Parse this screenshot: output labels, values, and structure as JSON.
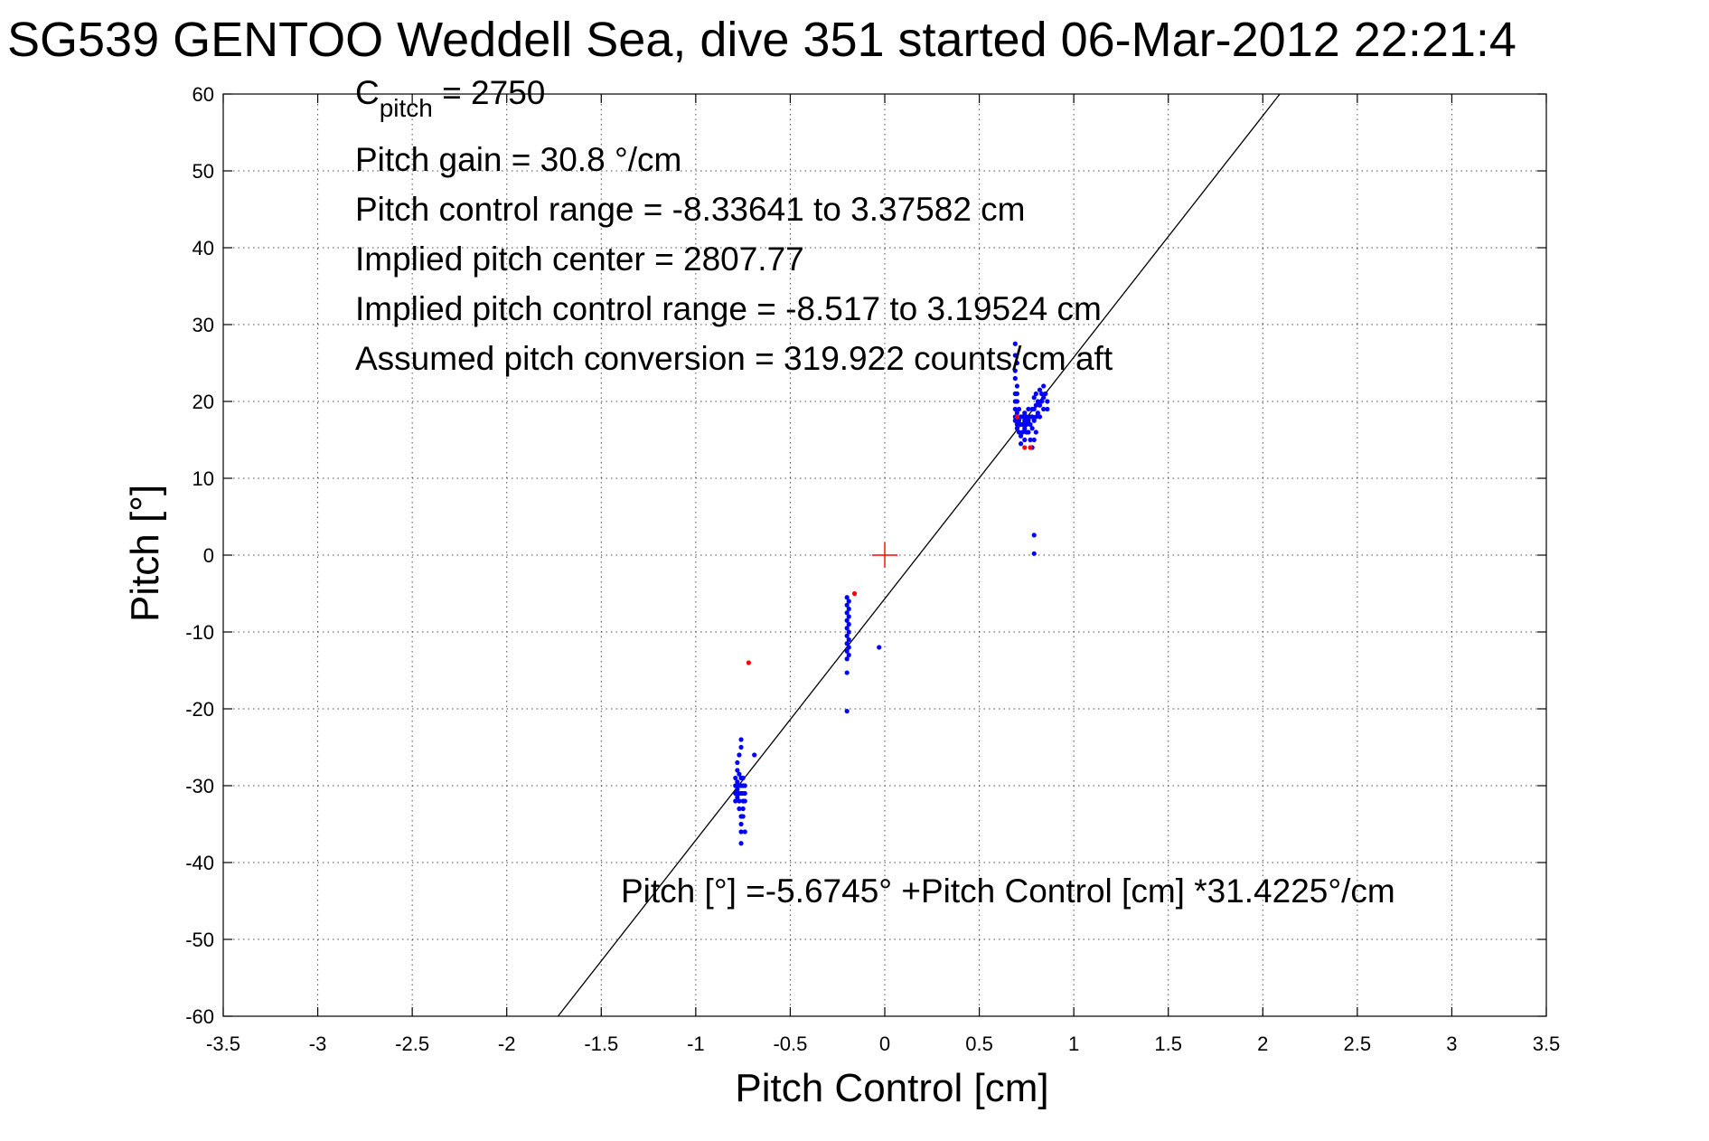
{
  "chart_data": {
    "type": "scatter",
    "title": "SG539 GENTOO Weddell Sea, dive 351 started 06-Mar-2012 22:21:4",
    "xlabel": "Pitch Control [cm]",
    "ylabel": "Pitch [°]",
    "xlim": [
      -3.5,
      3.5
    ],
    "ylim": [
      -60,
      60
    ],
    "xticks": [
      -3.5,
      -3,
      -2.5,
      -2,
      -1.5,
      -1,
      -0.5,
      0,
      0.5,
      1,
      1.5,
      2,
      2.5,
      3,
      3.5
    ],
    "xtick_labels": [
      "-3.5",
      "-3",
      "-2.5",
      "-2",
      "-1.5",
      "-1",
      "-0.5",
      "0",
      "0.5",
      "1",
      "1.5",
      "2",
      "2.5",
      "3",
      "3.5"
    ],
    "yticks": [
      -60,
      -50,
      -40,
      -30,
      -20,
      -10,
      0,
      10,
      20,
      30,
      40,
      50,
      60
    ],
    "ytick_labels": [
      "-60",
      "-50",
      "-40",
      "-30",
      "-20",
      "-10",
      "0",
      "10",
      "20",
      "30",
      "40",
      "50",
      "60"
    ],
    "grid": true,
    "annotations": {
      "cpitch_main": "C",
      "cpitch_sub": "pitch",
      "cpitch_value": " = 2750",
      "lines": [
        "Pitch gain = 30.8 °/cm",
        "Pitch control range = -8.33641 to 3.37582 cm",
        "Implied pitch center = 2807.77",
        "Implied pitch control range = -8.517 to 3.19524 cm",
        "Assumed pitch conversion = 319.922 counts/cm aft"
      ],
      "fit_equation": "Pitch [°] =-5.6745° +Pitch Control [cm] *31.4225°/cm"
    },
    "fit": {
      "intercept": -5.6745,
      "slope": 31.4225,
      "color": "#000000"
    },
    "center_marker": {
      "x": 0,
      "y": 0,
      "color": "#ff0000"
    },
    "series": [
      {
        "color": "#0000ff",
        "points": [
          [
            -0.79,
            -29
          ],
          [
            -0.79,
            -30
          ],
          [
            -0.79,
            -31
          ],
          [
            -0.79,
            -32
          ],
          [
            -0.78,
            -28
          ],
          [
            -0.78,
            -29.5
          ],
          [
            -0.78,
            -30.5
          ],
          [
            -0.78,
            -31.5
          ],
          [
            -0.78,
            -27
          ],
          [
            -0.77,
            -26
          ],
          [
            -0.77,
            -28.5
          ],
          [
            -0.77,
            -30
          ],
          [
            -0.77,
            -31
          ],
          [
            -0.77,
            -32
          ],
          [
            -0.77,
            -33
          ],
          [
            -0.76,
            -24
          ],
          [
            -0.76,
            -25
          ],
          [
            -0.76,
            -29
          ],
          [
            -0.76,
            -30
          ],
          [
            -0.76,
            -31
          ],
          [
            -0.76,
            -34
          ],
          [
            -0.76,
            -35
          ],
          [
            -0.76,
            -36
          ],
          [
            -0.76,
            -37.5
          ],
          [
            -0.75,
            -29
          ],
          [
            -0.75,
            -30
          ],
          [
            -0.75,
            -31
          ],
          [
            -0.75,
            -32
          ],
          [
            -0.75,
            -33
          ],
          [
            -0.75,
            -34
          ],
          [
            -0.74,
            -30
          ],
          [
            -0.74,
            -31
          ],
          [
            -0.74,
            -32
          ],
          [
            -0.74,
            -36
          ],
          [
            -0.69,
            -26
          ],
          [
            -0.2,
            -5.5
          ],
          [
            -0.2,
            -6.5
          ],
          [
            -0.2,
            -7.5
          ],
          [
            -0.2,
            -8.5
          ],
          [
            -0.2,
            -9.5
          ],
          [
            -0.2,
            -10.5
          ],
          [
            -0.2,
            -11.5
          ],
          [
            -0.2,
            -12.5
          ],
          [
            -0.2,
            -13.5
          ],
          [
            -0.2,
            -15.3
          ],
          [
            -0.2,
            -20.3
          ],
          [
            -0.19,
            -6
          ],
          [
            -0.19,
            -7
          ],
          [
            -0.19,
            -8
          ],
          [
            -0.19,
            -9
          ],
          [
            -0.19,
            -10
          ],
          [
            -0.19,
            -11
          ],
          [
            -0.19,
            -12
          ],
          [
            -0.19,
            -13
          ],
          [
            -0.03,
            -12
          ],
          [
            0.69,
            27.5
          ],
          [
            0.69,
            26
          ],
          [
            0.69,
            24
          ],
          [
            0.69,
            23
          ],
          [
            0.69,
            21
          ],
          [
            0.69,
            20
          ],
          [
            0.69,
            19
          ],
          [
            0.69,
            18
          ],
          [
            0.69,
            17.5
          ],
          [
            0.7,
            25
          ],
          [
            0.7,
            22
          ],
          [
            0.7,
            21
          ],
          [
            0.7,
            20
          ],
          [
            0.7,
            18.5
          ],
          [
            0.7,
            17
          ],
          [
            0.7,
            16.5
          ],
          [
            0.71,
            19
          ],
          [
            0.71,
            17.5
          ],
          [
            0.71,
            16
          ],
          [
            0.72,
            18
          ],
          [
            0.72,
            17
          ],
          [
            0.72,
            15.5
          ],
          [
            0.72,
            14.5
          ],
          [
            0.73,
            18
          ],
          [
            0.73,
            17
          ],
          [
            0.73,
            16
          ],
          [
            0.74,
            18.5
          ],
          [
            0.74,
            17.5
          ],
          [
            0.74,
            16.5
          ],
          [
            0.74,
            15
          ],
          [
            0.75,
            18
          ],
          [
            0.75,
            17
          ],
          [
            0.75,
            16
          ],
          [
            0.76,
            19
          ],
          [
            0.76,
            17.5
          ],
          [
            0.76,
            16
          ],
          [
            0.77,
            18
          ],
          [
            0.77,
            17
          ],
          [
            0.77,
            15
          ],
          [
            0.78,
            19
          ],
          [
            0.78,
            18
          ],
          [
            0.78,
            16.5
          ],
          [
            0.78,
            14
          ],
          [
            0.79,
            20.5
          ],
          [
            0.79,
            19
          ],
          [
            0.79,
            17.5
          ],
          [
            0.79,
            15
          ],
          [
            0.79,
            2.6
          ],
          [
            0.79,
            0.2
          ],
          [
            0.8,
            21
          ],
          [
            0.8,
            19.5
          ],
          [
            0.8,
            18
          ],
          [
            0.8,
            16
          ],
          [
            0.81,
            20
          ],
          [
            0.81,
            18.5
          ],
          [
            0.82,
            21.5
          ],
          [
            0.82,
            19.5
          ],
          [
            0.82,
            18
          ],
          [
            0.83,
            21
          ],
          [
            0.83,
            20
          ],
          [
            0.84,
            22
          ],
          [
            0.84,
            20.5
          ],
          [
            0.84,
            19
          ],
          [
            0.85,
            21
          ],
          [
            0.86,
            20
          ],
          [
            0.86,
            19
          ]
        ]
      },
      {
        "color": "#ff0000",
        "points": [
          [
            -0.72,
            -14
          ],
          [
            -0.16,
            -5
          ],
          [
            0.74,
            14
          ],
          [
            0.77,
            14
          ],
          [
            0.7,
            18
          ]
        ]
      }
    ]
  }
}
